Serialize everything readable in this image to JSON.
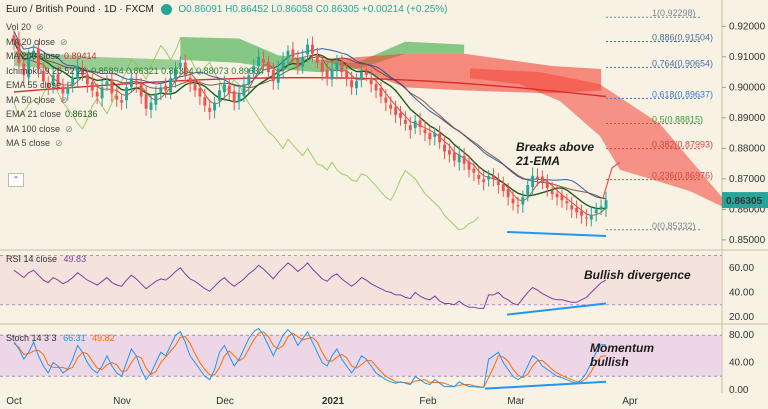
{
  "header": {
    "symbol": "Euro / British Pound · 1D · FXCM",
    "ohlc": "O0.86091 H0.86452 L0.86058 C0.86305 +0.00214 (+0.25%)"
  },
  "indicators": [
    {
      "id": "vol",
      "label": "Vol 20"
    },
    {
      "id": "ma20",
      "label": "MA 20 close"
    },
    {
      "id": "ma200",
      "label": "MA 200 close",
      "value": "0.89414"
    },
    {
      "id": "ichimoku",
      "label": "Ichimoku 9 26 52 26",
      "value": "0.85894 0.86321 0.86304 0.88073 0.89634"
    },
    {
      "id": "ema55",
      "label": "EMA 55 close"
    },
    {
      "id": "ma50",
      "label": "MA 50 close"
    },
    {
      "id": "ema21",
      "label": "EMA 21 close",
      "value": "0.86136"
    },
    {
      "id": "ma100",
      "label": "MA 100 close"
    },
    {
      "id": "ma5",
      "label": "MA 5 close"
    }
  ],
  "fib_levels": [
    {
      "ratio": "1",
      "price": "0.92298",
      "color": "#7b8794"
    },
    {
      "ratio": "0.886",
      "price": "0.91504",
      "color": "#4a6fa5"
    },
    {
      "ratio": "0.764",
      "price": "0.90654",
      "color": "#4a6fa5"
    },
    {
      "ratio": "0.618",
      "price": "0.89637",
      "color": "#3d7bbf"
    },
    {
      "ratio": "0.5",
      "price": "0.88815",
      "color": "#3c9c3c"
    },
    {
      "ratio": "0.382",
      "price": "0.87993",
      "color": "#d64545"
    },
    {
      "ratio": "0.236",
      "price": "0.86976",
      "color": "#d64545"
    },
    {
      "ratio": "0",
      "price": "0.85332",
      "color": "#7b8794"
    }
  ],
  "price_axis": {
    "ticks": [
      "0.92000",
      "0.91000",
      "0.90000",
      "0.89000",
      "0.88000",
      "0.87000",
      "0.86000",
      "0.85000"
    ],
    "last_price": "0.86305",
    "last_price_color": "#26a69a"
  },
  "annotations": {
    "breakout": "Breaks above\n21-EMA",
    "rsi_div": "Bullish divergence",
    "stoch_div": "Momentum\nbullish"
  },
  "rsi": {
    "label": "RSI 14 close",
    "value": "49.83",
    "ticks": [
      "60.00",
      "40.00",
      "20.00"
    ]
  },
  "stoch": {
    "label": "Stoch 14 3 3",
    "k": "66.31",
    "d": "49.82",
    "ticks": [
      "80.00",
      "40.00",
      "0.00"
    ]
  },
  "time_axis": [
    "Oct",
    "Nov",
    "Dec",
    "2021",
    "Feb",
    "Mar",
    "Apr"
  ],
  "colors": {
    "up": "#26a69a",
    "down": "#ef5350",
    "ema21": "#1b5e20",
    "ma200": "#d32f2f",
    "kijun": "#7a3b2e",
    "tenkan": "#c0392b",
    "baseline": "#1f4e9c",
    "lagging": "#8bc34a",
    "cloud_bull": "#4caf50",
    "cloud_bear": "#f44336",
    "rsi": "#7e3fa0",
    "stoch_k": "#2196f3",
    "stoch_d": "#ff6d00",
    "trend": "#2196f3"
  },
  "chart_data": {
    "type": "candlestick",
    "title": "Euro / British Pound · 1D · FXCM",
    "x": [
      "Oct",
      "Nov",
      "Dec",
      "2021",
      "Feb",
      "Mar",
      "Apr"
    ],
    "ylim": [
      0.848,
      0.926
    ],
    "closes": [
      0.915,
      0.908,
      0.904,
      0.91,
      0.912,
      0.906,
      0.902,
      0.9,
      0.904,
      0.901,
      0.898,
      0.9,
      0.903,
      0.907,
      0.904,
      0.901,
      0.899,
      0.897,
      0.9,
      0.902,
      0.898,
      0.896,
      0.895,
      0.9,
      0.903,
      0.901,
      0.897,
      0.893,
      0.895,
      0.898,
      0.9,
      0.899,
      0.903,
      0.906,
      0.908,
      0.904,
      0.901,
      0.899,
      0.897,
      0.894,
      0.892,
      0.895,
      0.899,
      0.901,
      0.898,
      0.895,
      0.898,
      0.901,
      0.904,
      0.907,
      0.91,
      0.908,
      0.905,
      0.902,
      0.906,
      0.909,
      0.912,
      0.91,
      0.907,
      0.91,
      0.914,
      0.911,
      0.908,
      0.905,
      0.903,
      0.906,
      0.908,
      0.905,
      0.903,
      0.9,
      0.902,
      0.905,
      0.904,
      0.901,
      0.899,
      0.897,
      0.895,
      0.893,
      0.891,
      0.89,
      0.888,
      0.886,
      0.889,
      0.887,
      0.885,
      0.883,
      0.885,
      0.882,
      0.879,
      0.878,
      0.876,
      0.878,
      0.875,
      0.873,
      0.872,
      0.87,
      0.869,
      0.871,
      0.87,
      0.868,
      0.866,
      0.864,
      0.862,
      0.861,
      0.864,
      0.868,
      0.871,
      0.87,
      0.869,
      0.867,
      0.865,
      0.864,
      0.863,
      0.862,
      0.86,
      0.859,
      0.858,
      0.857,
      0.858,
      0.86,
      0.861,
      0.863
    ],
    "rsi_values": [
      58,
      55,
      52,
      56,
      58,
      54,
      50,
      48,
      52,
      50,
      47,
      49,
      52,
      56,
      53,
      50,
      48,
      46,
      49,
      52,
      48,
      46,
      45,
      50,
      54,
      51,
      47,
      43,
      46,
      49,
      51,
      50,
      53,
      57,
      60,
      55,
      51,
      49,
      46,
      43,
      41,
      45,
      49,
      52,
      48,
      45,
      48,
      51,
      55,
      58,
      62,
      59,
      55,
      51,
      56,
      60,
      64,
      61,
      57,
      60,
      64,
      59,
      55,
      51,
      49,
      53,
      55,
      51,
      48,
      45,
      48,
      52,
      50,
      47,
      45,
      43,
      41,
      40,
      38,
      38,
      36,
      35,
      40,
      37,
      35,
      34,
      37,
      33,
      31,
      31,
      30,
      33,
      30,
      28,
      28,
      27,
      27,
      38,
      38,
      40,
      36,
      34,
      31,
      30,
      35,
      40,
      44,
      42,
      39,
      37,
      35,
      34,
      34,
      33,
      32,
      32,
      34,
      36,
      40,
      44,
      48,
      50
    ],
    "stoch_k": [
      70,
      60,
      45,
      55,
      70,
      50,
      35,
      25,
      40,
      35,
      25,
      30,
      45,
      65,
      55,
      40,
      30,
      25,
      35,
      50,
      35,
      25,
      20,
      40,
      60,
      50,
      30,
      15,
      25,
      40,
      55,
      50,
      65,
      80,
      85,
      70,
      50,
      40,
      30,
      20,
      15,
      30,
      55,
      65,
      50,
      35,
      45,
      60,
      75,
      85,
      90,
      80,
      65,
      50,
      65,
      80,
      88,
      80,
      65,
      75,
      85,
      70,
      55,
      40,
      35,
      50,
      60,
      45,
      35,
      25,
      35,
      50,
      45,
      35,
      25,
      20,
      15,
      12,
      10,
      12,
      10,
      8,
      20,
      15,
      10,
      8,
      15,
      10,
      5,
      5,
      5,
      12,
      8,
      5,
      5,
      4,
      4,
      45,
      50,
      55,
      40,
      30,
      20,
      15,
      20,
      35,
      50,
      45,
      35,
      30,
      25,
      20,
      18,
      15,
      12,
      10,
      15,
      25,
      40,
      55,
      66,
      66
    ],
    "stoch_d": [
      68,
      62,
      52,
      53,
      57,
      58,
      52,
      37,
      33,
      33,
      33,
      30,
      33,
      47,
      55,
      53,
      42,
      32,
      30,
      37,
      40,
      37,
      27,
      28,
      40,
      50,
      47,
      32,
      23,
      27,
      40,
      48,
      57,
      65,
      77,
      78,
      68,
      53,
      40,
      30,
      22,
      22,
      33,
      50,
      57,
      50,
      43,
      47,
      60,
      73,
      83,
      85,
      78,
      65,
      60,
      65,
      78,
      83,
      78,
      73,
      75,
      77,
      70,
      55,
      43,
      42,
      48,
      52,
      47,
      35,
      32,
      37,
      43,
      43,
      35,
      27,
      20,
      16,
      12,
      11,
      11,
      10,
      13,
      14,
      15,
      11,
      11,
      11,
      10,
      7,
      5,
      7,
      8,
      8,
      6,
      5,
      4,
      18,
      33,
      50,
      48,
      42,
      30,
      22,
      18,
      23,
      35,
      43,
      43,
      37,
      30,
      25,
      21,
      18,
      15,
      12,
      12,
      17,
      27,
      40,
      49,
      50
    ]
  }
}
